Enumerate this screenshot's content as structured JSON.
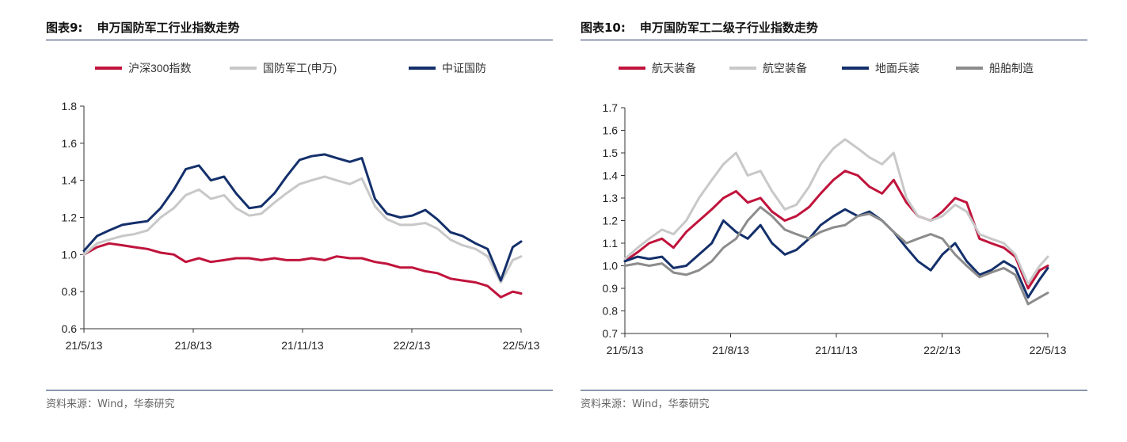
{
  "charts": [
    {
      "figure_label": "图表9:",
      "title": "申万国防军工行业指数走势",
      "source": "资料来源：Wind，华泰研究",
      "chart_data": {
        "type": "line",
        "ylim": [
          0.6,
          1.8
        ],
        "yticks": [
          "0.6",
          "0.8",
          "1.0",
          "1.2",
          "1.4",
          "1.6",
          "1.8"
        ],
        "x_range": [
          "2021-05-13",
          "2022-05-13"
        ],
        "xtick_labels": [
          "21/5/13",
          "21/8/13",
          "21/11/13",
          "22/2/13",
          "22/5/13"
        ],
        "grid": false,
        "legend_position": "top",
        "series": [
          {
            "name": "沪深300指数",
            "color": "#c0143c",
            "x": [
              "2021-05-13",
              "2021-05-24",
              "2021-06-03",
              "2021-06-14",
              "2021-06-24",
              "2021-07-05",
              "2021-07-16",
              "2021-07-27",
              "2021-08-06",
              "2021-08-17",
              "2021-08-27",
              "2021-09-07",
              "2021-09-17",
              "2021-09-28",
              "2021-10-08",
              "2021-10-19",
              "2021-10-29",
              "2021-11-09",
              "2021-11-19",
              "2021-11-30",
              "2021-12-10",
              "2021-12-21",
              "2021-12-31",
              "2022-01-11",
              "2022-01-21",
              "2022-02-01",
              "2022-02-11",
              "2022-02-22",
              "2022-03-04",
              "2022-03-15",
              "2022-03-25",
              "2022-04-05",
              "2022-04-15",
              "2022-04-26",
              "2022-05-06",
              "2022-05-13"
            ],
            "y": [
              1.0,
              1.04,
              1.06,
              1.05,
              1.04,
              1.03,
              1.01,
              1.0,
              0.96,
              0.98,
              0.96,
              0.97,
              0.98,
              0.98,
              0.97,
              0.98,
              0.97,
              0.97,
              0.98,
              0.97,
              0.99,
              0.98,
              0.98,
              0.96,
              0.95,
              0.93,
              0.93,
              0.91,
              0.9,
              0.87,
              0.86,
              0.85,
              0.83,
              0.77,
              0.8,
              0.79
            ]
          },
          {
            "name": "国防军工(申万)",
            "color": "#c8c8c8",
            "x": [
              "2021-05-13",
              "2021-05-24",
              "2021-06-03",
              "2021-06-14",
              "2021-06-24",
              "2021-07-05",
              "2021-07-16",
              "2021-07-27",
              "2021-08-06",
              "2021-08-17",
              "2021-08-27",
              "2021-09-07",
              "2021-09-17",
              "2021-09-28",
              "2021-10-08",
              "2021-10-19",
              "2021-10-29",
              "2021-11-09",
              "2021-11-19",
              "2021-11-30",
              "2021-12-10",
              "2021-12-21",
              "2021-12-31",
              "2022-01-11",
              "2022-01-21",
              "2022-02-01",
              "2022-02-11",
              "2022-02-22",
              "2022-03-04",
              "2022-03-15",
              "2022-03-25",
              "2022-04-05",
              "2022-04-15",
              "2022-04-26",
              "2022-05-06",
              "2022-05-13"
            ],
            "y": [
              1.0,
              1.06,
              1.08,
              1.1,
              1.11,
              1.13,
              1.2,
              1.25,
              1.32,
              1.35,
              1.3,
              1.32,
              1.25,
              1.21,
              1.22,
              1.28,
              1.33,
              1.38,
              1.4,
              1.42,
              1.4,
              1.38,
              1.41,
              1.26,
              1.19,
              1.16,
              1.16,
              1.17,
              1.14,
              1.08,
              1.05,
              1.03,
              0.99,
              0.85,
              0.97,
              0.99
            ]
          },
          {
            "name": "中证国防",
            "color": "#14306b",
            "x": [
              "2021-05-13",
              "2021-05-24",
              "2021-06-03",
              "2021-06-14",
              "2021-06-24",
              "2021-07-05",
              "2021-07-16",
              "2021-07-27",
              "2021-08-06",
              "2021-08-17",
              "2021-08-27",
              "2021-09-07",
              "2021-09-17",
              "2021-09-28",
              "2021-10-08",
              "2021-10-19",
              "2021-10-29",
              "2021-11-09",
              "2021-11-19",
              "2021-11-30",
              "2021-12-10",
              "2021-12-21",
              "2021-12-31",
              "2022-01-11",
              "2022-01-21",
              "2022-02-01",
              "2022-02-11",
              "2022-02-22",
              "2022-03-04",
              "2022-03-15",
              "2022-03-25",
              "2022-04-05",
              "2022-04-15",
              "2022-04-26",
              "2022-05-06",
              "2022-05-13"
            ],
            "y": [
              1.02,
              1.1,
              1.13,
              1.16,
              1.17,
              1.18,
              1.25,
              1.35,
              1.46,
              1.48,
              1.4,
              1.42,
              1.33,
              1.25,
              1.26,
              1.33,
              1.42,
              1.51,
              1.53,
              1.54,
              1.52,
              1.5,
              1.52,
              1.3,
              1.22,
              1.2,
              1.21,
              1.24,
              1.19,
              1.12,
              1.1,
              1.06,
              1.03,
              0.86,
              1.04,
              1.07
            ]
          }
        ]
      }
    },
    {
      "figure_label": "图表10:",
      "title": "申万国防军工二级子行业指数走势",
      "source": "资料来源：Wind，华泰研究",
      "chart_data": {
        "type": "line",
        "ylim": [
          0.7,
          1.7
        ],
        "yticks": [
          "0.7",
          "0.8",
          "0.9",
          "1.0",
          "1.1",
          "1.2",
          "1.3",
          "1.4",
          "1.5",
          "1.6",
          "1.7"
        ],
        "x_range": [
          "2021-05-13",
          "2022-05-13"
        ],
        "xtick_labels": [
          "21/5/13",
          "21/8/13",
          "21/11/13",
          "22/2/13",
          "22/5/13"
        ],
        "grid": false,
        "legend_position": "top",
        "series": [
          {
            "name": "航天装备",
            "color": "#c0143c",
            "x": [
              "2021-05-13",
              "2021-05-24",
              "2021-06-03",
              "2021-06-14",
              "2021-06-24",
              "2021-07-05",
              "2021-07-16",
              "2021-07-27",
              "2021-08-06",
              "2021-08-17",
              "2021-08-27",
              "2021-09-07",
              "2021-09-17",
              "2021-09-28",
              "2021-10-08",
              "2021-10-19",
              "2021-10-29",
              "2021-11-09",
              "2021-11-19",
              "2021-11-30",
              "2021-12-10",
              "2021-12-21",
              "2021-12-31",
              "2022-01-11",
              "2022-01-21",
              "2022-02-01",
              "2022-02-11",
              "2022-02-22",
              "2022-03-04",
              "2022-03-15",
              "2022-03-25",
              "2022-04-05",
              "2022-04-15",
              "2022-04-26",
              "2022-05-06",
              "2022-05-13"
            ],
            "y": [
              1.02,
              1.06,
              1.1,
              1.12,
              1.08,
              1.15,
              1.2,
              1.25,
              1.3,
              1.33,
              1.28,
              1.3,
              1.24,
              1.2,
              1.22,
              1.26,
              1.32,
              1.38,
              1.42,
              1.4,
              1.35,
              1.32,
              1.38,
              1.28,
              1.22,
              1.2,
              1.24,
              1.3,
              1.28,
              1.12,
              1.1,
              1.08,
              1.04,
              0.9,
              0.98,
              1.0
            ]
          },
          {
            "name": "航空装备",
            "color": "#c8c8c8",
            "x": [
              "2021-05-13",
              "2021-05-24",
              "2021-06-03",
              "2021-06-14",
              "2021-06-24",
              "2021-07-05",
              "2021-07-16",
              "2021-07-27",
              "2021-08-06",
              "2021-08-17",
              "2021-08-27",
              "2021-09-07",
              "2021-09-17",
              "2021-09-28",
              "2021-10-08",
              "2021-10-19",
              "2021-10-29",
              "2021-11-09",
              "2021-11-19",
              "2021-11-30",
              "2021-12-10",
              "2021-12-21",
              "2021-12-31",
              "2022-01-11",
              "2022-01-21",
              "2022-02-01",
              "2022-02-11",
              "2022-02-22",
              "2022-03-04",
              "2022-03-15",
              "2022-03-25",
              "2022-04-05",
              "2022-04-15",
              "2022-04-26",
              "2022-05-06",
              "2022-05-13"
            ],
            "y": [
              1.03,
              1.08,
              1.12,
              1.16,
              1.14,
              1.2,
              1.3,
              1.38,
              1.45,
              1.5,
              1.4,
              1.42,
              1.33,
              1.25,
              1.27,
              1.35,
              1.45,
              1.52,
              1.56,
              1.52,
              1.48,
              1.45,
              1.5,
              1.3,
              1.22,
              1.2,
              1.22,
              1.27,
              1.24,
              1.14,
              1.12,
              1.1,
              1.05,
              0.92,
              1.0,
              1.04
            ]
          },
          {
            "name": "地面兵装",
            "color": "#14306b",
            "x": [
              "2021-05-13",
              "2021-05-24",
              "2021-06-03",
              "2021-06-14",
              "2021-06-24",
              "2021-07-05",
              "2021-07-16",
              "2021-07-27",
              "2021-08-06",
              "2021-08-17",
              "2021-08-27",
              "2021-09-07",
              "2021-09-17",
              "2021-09-28",
              "2021-10-08",
              "2021-10-19",
              "2021-10-29",
              "2021-11-09",
              "2021-11-19",
              "2021-11-30",
              "2021-12-10",
              "2021-12-21",
              "2021-12-31",
              "2022-01-11",
              "2022-01-21",
              "2022-02-01",
              "2022-02-11",
              "2022-02-22",
              "2022-03-04",
              "2022-03-15",
              "2022-03-25",
              "2022-04-05",
              "2022-04-15",
              "2022-04-26",
              "2022-05-06",
              "2022-05-13"
            ],
            "y": [
              1.02,
              1.04,
              1.03,
              1.04,
              0.99,
              1.0,
              1.05,
              1.1,
              1.2,
              1.15,
              1.12,
              1.18,
              1.1,
              1.05,
              1.07,
              1.12,
              1.18,
              1.22,
              1.25,
              1.22,
              1.24,
              1.2,
              1.15,
              1.08,
              1.02,
              0.98,
              1.05,
              1.1,
              1.02,
              0.96,
              0.98,
              1.02,
              0.99,
              0.86,
              0.94,
              0.99
            ]
          },
          {
            "name": "船舶制造",
            "color": "#8c8c8c",
            "x": [
              "2021-05-13",
              "2021-05-24",
              "2021-06-03",
              "2021-06-14",
              "2021-06-24",
              "2021-07-05",
              "2021-07-16",
              "2021-07-27",
              "2021-08-06",
              "2021-08-17",
              "2021-08-27",
              "2021-09-07",
              "2021-09-17",
              "2021-09-28",
              "2021-10-08",
              "2021-10-19",
              "2021-10-29",
              "2021-11-09",
              "2021-11-19",
              "2021-11-30",
              "2021-12-10",
              "2021-12-21",
              "2021-12-31",
              "2022-01-11",
              "2022-01-21",
              "2022-02-01",
              "2022-02-11",
              "2022-02-22",
              "2022-03-04",
              "2022-03-15",
              "2022-03-25",
              "2022-04-05",
              "2022-04-15",
              "2022-04-26",
              "2022-05-06",
              "2022-05-13"
            ],
            "y": [
              1.0,
              1.01,
              1.0,
              1.01,
              0.97,
              0.96,
              0.98,
              1.02,
              1.08,
              1.12,
              1.2,
              1.26,
              1.22,
              1.16,
              1.14,
              1.12,
              1.15,
              1.17,
              1.18,
              1.22,
              1.23,
              1.2,
              1.15,
              1.1,
              1.12,
              1.14,
              1.12,
              1.05,
              1.0,
              0.95,
              0.97,
              0.99,
              0.96,
              0.83,
              0.86,
              0.88
            ]
          }
        ]
      }
    }
  ]
}
